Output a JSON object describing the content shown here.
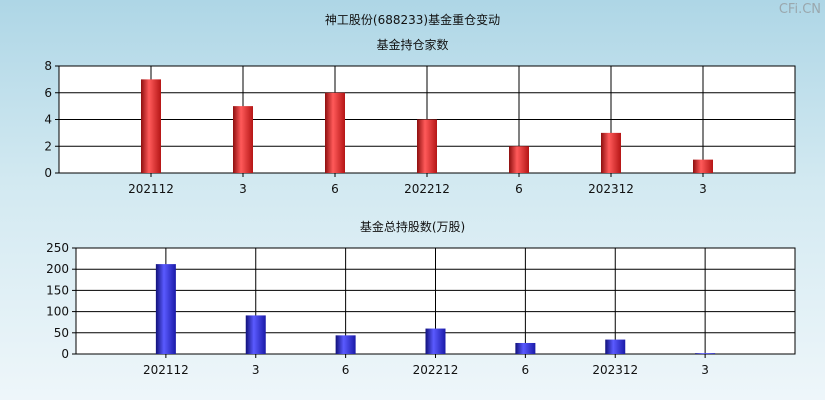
{
  "header": {
    "title": "神工股份(688233)基金重仓变动",
    "brand": "CFi.CN"
  },
  "chart_data": [
    {
      "type": "bar",
      "title": "基金持仓家数",
      "categories": [
        "202112",
        "3",
        "6",
        "202212",
        "6",
        "202312",
        "3"
      ],
      "values": [
        7,
        5,
        6,
        4,
        2,
        3,
        1
      ],
      "ylim": [
        0,
        8
      ],
      "yticks": [
        0,
        2,
        4,
        6,
        8
      ],
      "grid": true,
      "color": "#dd2b2b"
    },
    {
      "type": "bar",
      "title": "基金总持股数(万股)",
      "categories": [
        "202112",
        "3",
        "6",
        "202212",
        "6",
        "202312",
        "3"
      ],
      "values": [
        212,
        91,
        44,
        60,
        26,
        34,
        2
      ],
      "ylim": [
        0,
        250
      ],
      "yticks": [
        0,
        50,
        100,
        150,
        200,
        250
      ],
      "grid": true,
      "color": "#2323c4"
    }
  ]
}
